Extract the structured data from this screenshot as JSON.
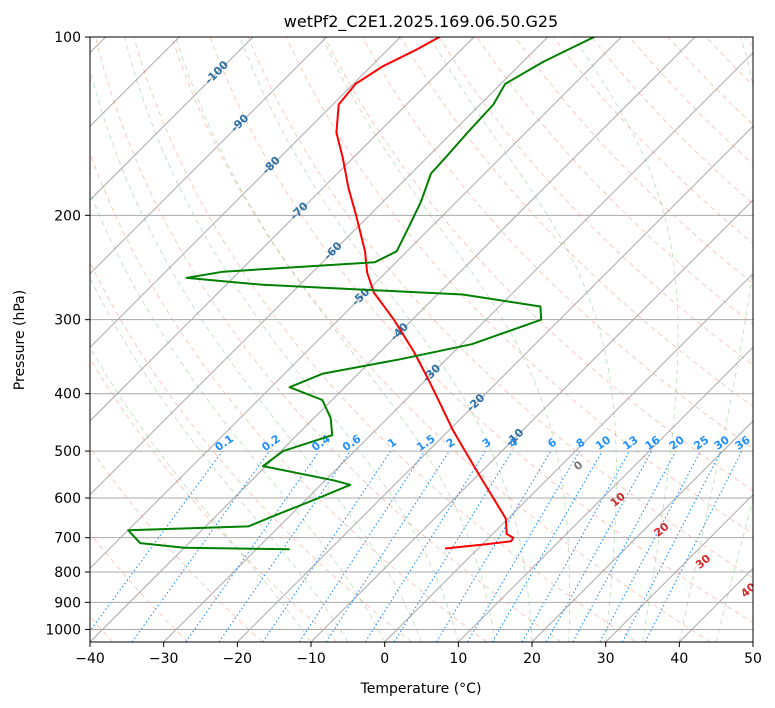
{
  "chart_data": {
    "type": "line",
    "title": "wetPf2_C2E1.2025.169.06.50.G25",
    "xlabel": "Temperature (°C)",
    "ylabel": "Pressure (hPa)",
    "xlim": [
      -40,
      50
    ],
    "ylim": [
      1050,
      100
    ],
    "y_scale": "log",
    "x_ticks": [
      -40,
      -30,
      -20,
      -10,
      0,
      10,
      20,
      30,
      40,
      50
    ],
    "x_tick_labels": [
      "−40",
      "−30",
      "−20",
      "−10",
      "0",
      "10",
      "20",
      "30",
      "40",
      "50"
    ],
    "y_ticks": [
      1000,
      900,
      800,
      700,
      600,
      500,
      400,
      300,
      200,
      100
    ],
    "y_tick_labels": [
      "1000",
      "900",
      "800",
      "700",
      "600",
      "500",
      "400",
      "300",
      "200",
      "100"
    ],
    "grid": true,
    "background_lines": {
      "skewed_isotherms": "gray",
      "dry_adiabats": "salmon dashed",
      "moist_adiabats": "green dashed",
      "mixing_ratio": "dodgerblue dotted"
    },
    "mixing_ratio_labels": [
      "0.1",
      "0.2",
      "0.4",
      "0.6",
      "1",
      "1.5",
      "2",
      "3",
      "4",
      "6",
      "8",
      "10",
      "13",
      "16",
      "20",
      "25",
      "30",
      "36"
    ],
    "isotherm_labels": [
      "-100",
      "-90",
      "-80",
      "-70",
      "-60",
      "-50",
      "-40",
      "-30",
      "-20",
      "-10"
    ],
    "dry_adiabat_labels": [
      "0",
      "10",
      "20",
      "30",
      "40"
    ],
    "series": [
      {
        "color": "#ff0000",
        "points": [
          {
            "p": 730,
            "t": -4.5
          },
          {
            "p": 718,
            "t": 0.5
          },
          {
            "p": 710,
            "t": 3.5
          },
          {
            "p": 700,
            "t": 3.3
          },
          {
            "p": 690,
            "t": 1.9
          },
          {
            "p": 650,
            "t": -0.3
          },
          {
            "p": 600,
            "t": -4.8
          },
          {
            "p": 550,
            "t": -9.7
          },
          {
            "p": 500,
            "t": -15.0
          },
          {
            "p": 460,
            "t": -19.6
          },
          {
            "p": 420,
            "t": -24.3
          },
          {
            "p": 380,
            "t": -29.5
          },
          {
            "p": 340,
            "t": -35.4
          },
          {
            "p": 300,
            "t": -42.5
          },
          {
            "p": 270,
            "t": -48.9
          },
          {
            "p": 250,
            "t": -52.5
          },
          {
            "p": 230,
            "t": -55.7
          },
          {
            "p": 200,
            "t": -61.8
          },
          {
            "p": 180,
            "t": -66.5
          },
          {
            "p": 160,
            "t": -71.4
          },
          {
            "p": 145,
            "t": -75.7
          },
          {
            "p": 130,
            "t": -79.2
          },
          {
            "p": 120,
            "t": -79.7
          },
          {
            "p": 112,
            "t": -78.4
          },
          {
            "p": 105,
            "t": -76.1
          },
          {
            "p": 100,
            "t": -74.7
          }
        ]
      },
      {
        "color": "#008000",
        "points": [
          {
            "p": 732,
            "t": -25.5
          },
          {
            "p": 728,
            "t": -40.0
          },
          {
            "p": 715,
            "t": -46.6
          },
          {
            "p": 680,
            "t": -50.0
          },
          {
            "p": 670,
            "t": -34.2
          },
          {
            "p": 640,
            "t": -31.9
          },
          {
            "p": 600,
            "t": -28.5
          },
          {
            "p": 570,
            "t": -26.0
          },
          {
            "p": 560,
            "t": -28.9
          },
          {
            "p": 530,
            "t": -40.4
          },
          {
            "p": 500,
            "t": -39.7
          },
          {
            "p": 470,
            "t": -35.2
          },
          {
            "p": 440,
            "t": -37.7
          },
          {
            "p": 410,
            "t": -41.3
          },
          {
            "p": 390,
            "t": -47.5
          },
          {
            "p": 370,
            "t": -44.8
          },
          {
            "p": 350,
            "t": -36.3
          },
          {
            "p": 330,
            "t": -28.6
          },
          {
            "p": 300,
            "t": -22.5
          },
          {
            "p": 285,
            "t": -24.4
          },
          {
            "p": 272,
            "t": -36.6
          },
          {
            "p": 262,
            "t": -65.0
          },
          {
            "p": 255,
            "t": -76.3
          },
          {
            "p": 249,
            "t": -72.2
          },
          {
            "p": 240,
            "t": -52.9
          },
          {
            "p": 230,
            "t": -51.4
          },
          {
            "p": 210,
            "t": -53.0
          },
          {
            "p": 190,
            "t": -54.8
          },
          {
            "p": 170,
            "t": -57.3
          },
          {
            "p": 160,
            "t": -57.5
          },
          {
            "p": 145,
            "t": -57.9
          },
          {
            "p": 130,
            "t": -58.2
          },
          {
            "p": 120,
            "t": -59.4
          },
          {
            "p": 110,
            "t": -57.2
          },
          {
            "p": 100,
            "t": -53.7
          }
        ]
      }
    ]
  }
}
